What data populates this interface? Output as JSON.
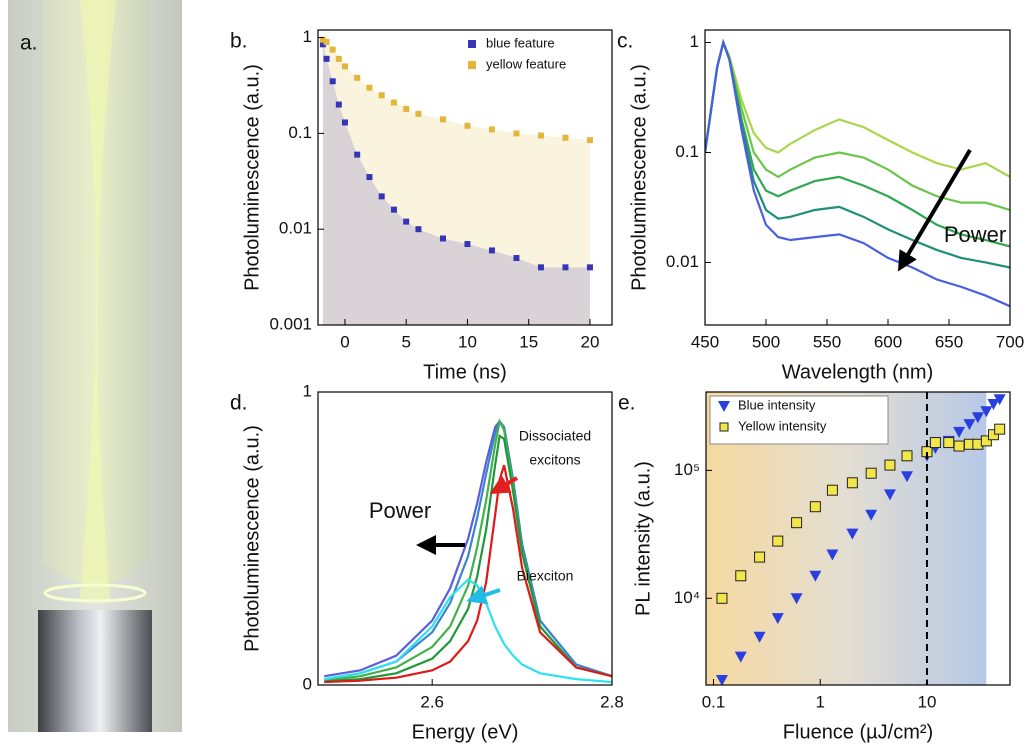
{
  "panel_a": {
    "label": "a."
  },
  "chart_data": [
    {
      "type": "scatter",
      "label": "b.",
      "xlabel": "Time (ns)",
      "ylabel": "Photoluminescence (a.u.)",
      "ylog": true,
      "area": true,
      "legend": "upper right",
      "xlim": [
        -2.2,
        21.8
      ],
      "xticks": [
        0,
        5,
        10,
        15,
        20
      ],
      "ylim": [
        0.001,
        1.2
      ],
      "yticks": [
        0.001,
        0.01,
        0.1,
        1
      ],
      "x": [
        -1.8,
        -1.5,
        -1,
        -0.5,
        0,
        1,
        2,
        3,
        4,
        5,
        6,
        8,
        10,
        12,
        14,
        16,
        18,
        20
      ],
      "series": [
        {
          "name": "blue feature",
          "color": "#3535b5",
          "marker": "square",
          "values": [
            0.85,
            0.6,
            0.35,
            0.2,
            0.13,
            0.06,
            0.035,
            0.022,
            0.016,
            0.012,
            0.01,
            0.008,
            0.007,
            0.006,
            0.005,
            0.004,
            0.004,
            0.004
          ]
        },
        {
          "name": "yellow feature",
          "color": "#e3b53a",
          "marker": "square",
          "values": [
            0.95,
            0.9,
            0.75,
            0.6,
            0.5,
            0.38,
            0.3,
            0.25,
            0.21,
            0.18,
            0.16,
            0.14,
            0.12,
            0.11,
            0.1,
            0.095,
            0.09,
            0.085
          ]
        }
      ]
    },
    {
      "type": "line",
      "label": "c.",
      "xlabel": "Wavelength (nm)",
      "ylabel": "Photoluminescence (a.u.)",
      "ylog": true,
      "annotations": [
        {
          "text": "Power"
        }
      ],
      "xlim": [
        450,
        700
      ],
      "xticks": [
        450,
        500,
        550,
        600,
        650,
        700
      ],
      "ylim": [
        0.0027,
        1.3
      ],
      "yticks": [
        0.01,
        0.1,
        1
      ],
      "x": [
        450,
        460,
        465,
        470,
        480,
        490,
        500,
        510,
        520,
        540,
        560,
        580,
        600,
        620,
        640,
        660,
        680,
        700
      ],
      "series": [
        {
          "color": "#a8d84a",
          "values": [
            0.1,
            0.6,
            1,
            0.75,
            0.3,
            0.15,
            0.11,
            0.1,
            0.12,
            0.16,
            0.2,
            0.17,
            0.13,
            0.1,
            0.08,
            0.07,
            0.08,
            0.06
          ]
        },
        {
          "color": "#6cc44a",
          "values": [
            0.1,
            0.6,
            1,
            0.72,
            0.25,
            0.1,
            0.07,
            0.06,
            0.07,
            0.09,
            0.1,
            0.09,
            0.07,
            0.05,
            0.04,
            0.035,
            0.035,
            0.03
          ]
        },
        {
          "color": "#2fa84f",
          "values": [
            0.1,
            0.6,
            1,
            0.7,
            0.2,
            0.07,
            0.045,
            0.04,
            0.045,
            0.055,
            0.06,
            0.05,
            0.04,
            0.03,
            0.022,
            0.018,
            0.016,
            0.014
          ]
        },
        {
          "color": "#1e8f7a",
          "values": [
            0.1,
            0.6,
            1,
            0.7,
            0.18,
            0.055,
            0.03,
            0.025,
            0.026,
            0.03,
            0.032,
            0.026,
            0.02,
            0.016,
            0.013,
            0.011,
            0.01,
            0.009
          ]
        },
        {
          "color": "#4a5fe0",
          "values": [
            0.1,
            0.6,
            1,
            0.7,
            0.16,
            0.045,
            0.022,
            0.017,
            0.016,
            0.017,
            0.018,
            0.015,
            0.011,
            0.009,
            0.007,
            0.006,
            0.005,
            0.004
          ]
        }
      ]
    },
    {
      "type": "line",
      "label": "d.",
      "xlabel": "Energy (eV)",
      "ylabel": "Photoluminescence (a.u.)",
      "annotations": [
        {
          "text": "Power"
        },
        {
          "text": [
            "Dissociated",
            "excitons"
          ],
          "color": "#e02020"
        },
        {
          "text": "Biexciton",
          "color": "#22bde6"
        }
      ],
      "xlim": [
        2.473,
        2.8
      ],
      "xticks": [
        2.6,
        2.8
      ],
      "ylim": [
        0,
        1
      ],
      "yticks": [
        0,
        1
      ],
      "x": [
        2.48,
        2.52,
        2.56,
        2.6,
        2.62,
        2.64,
        2.65,
        2.66,
        2.67,
        2.675,
        2.68,
        2.69,
        2.7,
        2.72,
        2.76,
        2.8
      ],
      "series": [
        {
          "color": "#5a5ee0",
          "values": [
            0.03,
            0.05,
            0.1,
            0.22,
            0.33,
            0.5,
            0.62,
            0.76,
            0.88,
            0.9,
            0.88,
            0.7,
            0.48,
            0.22,
            0.07,
            0.03
          ]
        },
        {
          "color": "#3a86c8",
          "values": [
            0.02,
            0.04,
            0.08,
            0.18,
            0.28,
            0.44,
            0.57,
            0.72,
            0.86,
            0.9,
            0.88,
            0.7,
            0.48,
            0.22,
            0.07,
            0.03
          ]
        },
        {
          "color": "#44b04a",
          "values": [
            0.015,
            0.03,
            0.06,
            0.13,
            0.2,
            0.34,
            0.47,
            0.63,
            0.82,
            0.9,
            0.87,
            0.68,
            0.46,
            0.2,
            0.06,
            0.03
          ]
        },
        {
          "color": "#1f9a3a",
          "values": [
            0.012,
            0.02,
            0.04,
            0.09,
            0.15,
            0.26,
            0.37,
            0.53,
            0.75,
            0.85,
            0.84,
            0.66,
            0.45,
            0.2,
            0.06,
            0.03
          ]
        },
        {
          "color": "#e01818",
          "values": [
            0.01,
            0.015,
            0.025,
            0.05,
            0.08,
            0.15,
            0.22,
            0.35,
            0.58,
            0.7,
            0.75,
            0.6,
            0.4,
            0.18,
            0.06,
            0.03
          ]
        },
        {
          "color": "#2fe0f0",
          "values": [
            0.02,
            0.04,
            0.08,
            0.2,
            0.3,
            0.36,
            0.34,
            0.28,
            0.2,
            0.17,
            0.14,
            0.1,
            0.07,
            0.04,
            0.02,
            0.01
          ]
        }
      ]
    },
    {
      "type": "scatter",
      "label": "e.",
      "xlabel": "Fluence (µJ/cm²)",
      "ylabel": "PL intensity (a.u.)",
      "xlog": true,
      "ylog": true,
      "legend": "upper left",
      "vline": 10,
      "shaded_region": [
        0.085,
        36
      ],
      "xlim": [
        0.085,
        60
      ],
      "xticks": [
        0.1,
        1,
        10
      ],
      "ylim": [
        2100,
        410000
      ],
      "yticks": [
        {
          "value": 10000,
          "label": "10⁴"
        },
        {
          "value": 100000,
          "label": "10⁵"
        }
      ],
      "x": [
        0.12,
        0.18,
        0.27,
        0.4,
        0.6,
        0.9,
        1.3,
        2,
        3,
        4.5,
        6.5,
        10,
        12,
        16,
        20,
        25,
        30,
        36,
        42,
        48
      ],
      "series": [
        {
          "name": "Blue intensity",
          "color": "#2a3fe0",
          "marker": "triangle",
          "values": [
            2300,
            3500,
            5000,
            7000,
            10000,
            15000,
            22000,
            32000,
            45000,
            65000,
            90000,
            130000,
            150000,
            170000,
            200000,
            230000,
            260000,
            290000,
            330000,
            360000
          ]
        },
        {
          "name": "Yellow intensity",
          "color": "#f2e64a",
          "marker": "square",
          "values": [
            10000,
            15000,
            21000,
            28000,
            39000,
            52000,
            70000,
            80000,
            95000,
            110000,
            130000,
            140000,
            165000,
            165000,
            155000,
            160000,
            160000,
            170000,
            190000,
            210000
          ]
        }
      ]
    }
  ]
}
